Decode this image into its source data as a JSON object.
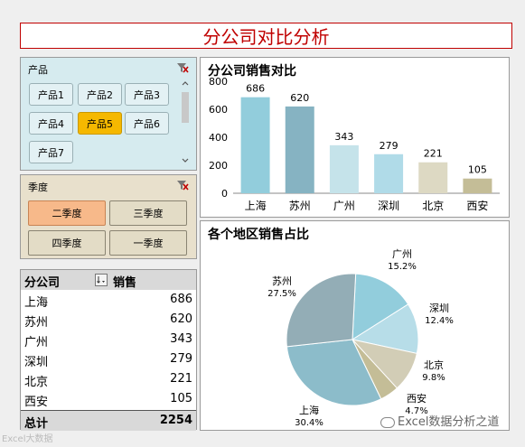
{
  "title": "分公司对比分析",
  "product_slicer": {
    "header": "产品",
    "items": [
      {
        "label": "产品1",
        "selected": false
      },
      {
        "label": "产品2",
        "selected": false
      },
      {
        "label": "产品3",
        "selected": false
      },
      {
        "label": "产品4",
        "selected": false
      },
      {
        "label": "产品5",
        "selected": true
      },
      {
        "label": "产品6",
        "selected": false
      },
      {
        "label": "产品7",
        "selected": false
      }
    ]
  },
  "season_slicer": {
    "header": "季度",
    "items": [
      {
        "label": "二季度",
        "selected": true
      },
      {
        "label": "三季度",
        "selected": false
      },
      {
        "label": "四季度",
        "selected": false
      },
      {
        "label": "一季度",
        "selected": false
      }
    ]
  },
  "pivot_table": {
    "col1": "分公司",
    "col2": "销售",
    "rows": [
      {
        "branch": "上海",
        "sales": "686"
      },
      {
        "branch": "苏州",
        "sales": "620"
      },
      {
        "branch": "广州",
        "sales": "343"
      },
      {
        "branch": "深圳",
        "sales": "279"
      },
      {
        "branch": "北京",
        "sales": "221"
      },
      {
        "branch": "西安",
        "sales": "105"
      }
    ],
    "total_label": "总计",
    "total_value": "2254"
  },
  "chart_data": [
    {
      "type": "bar",
      "title": "分公司销售对比",
      "categories": [
        "上海",
        "苏州",
        "广州",
        "深圳",
        "北京",
        "西安"
      ],
      "values": [
        686,
        620,
        343,
        279,
        221,
        105
      ],
      "colors": [
        "#92cddc",
        "#86b3c2",
        "#c5e3ea",
        "#b0dbe8",
        "#ddd9c3",
        "#c4bd97"
      ],
      "ylim": [
        0,
        800
      ],
      "yticks": [
        0,
        200,
        400,
        600,
        800
      ],
      "grid": false
    },
    {
      "type": "pie",
      "title": "各个地区销售占比",
      "slices": [
        {
          "label": "广州",
          "pct": "15.2%",
          "value": 343,
          "color": "#92cddc"
        },
        {
          "label": "深圳",
          "pct": "12.4%",
          "value": 279,
          "color": "#b7dde8"
        },
        {
          "label": "北京",
          "pct": "9.8%",
          "value": 221,
          "color": "#d2cdb6"
        },
        {
          "label": "西安",
          "pct": "4.7%",
          "value": 105,
          "color": "#c4bd97"
        },
        {
          "label": "上海",
          "pct": "30.4%",
          "value": 686,
          "color": "#8cbcca"
        },
        {
          "label": "苏州",
          "pct": "27.5%",
          "value": 620,
          "color": "#93adb6"
        }
      ]
    }
  ],
  "watermark_left": "Excel大数据",
  "watermark_right": "Excel数据分析之道",
  "icons": {
    "filter": "clear-filter-icon",
    "sort": "sort-dropdown-icon"
  }
}
